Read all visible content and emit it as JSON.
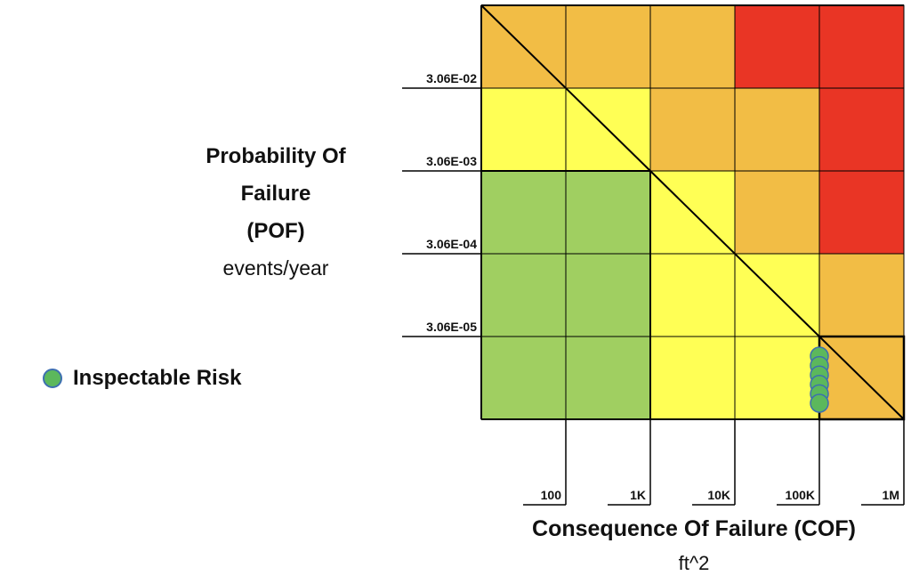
{
  "chart_data": {
    "type": "heatmap",
    "title": "",
    "ylabel_lines": [
      "Probability Of",
      "Failure",
      "(POF)"
    ],
    "yunit": "events/year",
    "xlabel": "Consequence Of Failure (COF)",
    "xunit": "ft^2",
    "y_tick_labels": [
      "3.06E-02",
      "3.06E-03",
      "3.06E-04",
      "3.06E-05"
    ],
    "x_tick_labels": [
      "100",
      "1K",
      "10K",
      "100K",
      "1M"
    ],
    "cells": [
      [
        "orange",
        "orange",
        "orange",
        "red",
        "red"
      ],
      [
        "yellow",
        "yellow",
        "orange",
        "orange",
        "red"
      ],
      [
        "green",
        "green",
        "yellow",
        "orange",
        "red"
      ],
      [
        "green",
        "green",
        "yellow",
        "yellow",
        "orange"
      ],
      [
        "green",
        "green",
        "yellow",
        "yellow",
        "orange"
      ]
    ],
    "colors": {
      "red": "#e93525",
      "orange": "#f2bd45",
      "yellow": "#ffff55",
      "green": "#a0cf61",
      "point": "#5cb85c",
      "point_border": "#3d6fb0"
    },
    "highlighted_cell": {
      "row": 5,
      "col": 5
    },
    "points": {
      "row": 5,
      "col": 4,
      "position": "col 4 / col 5 boundary",
      "count": 6
    },
    "legend": {
      "label": "Inspectable Risk",
      "placement": "left"
    }
  }
}
